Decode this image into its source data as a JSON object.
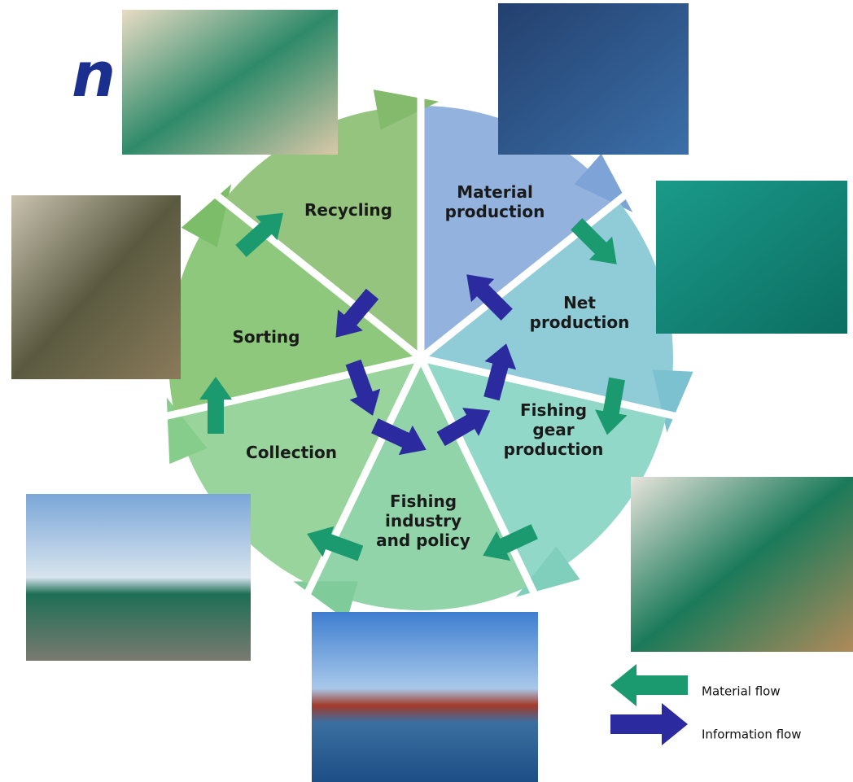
{
  "title_fragment": "n",
  "segments": [
    {
      "lines": [
        "Material",
        "production"
      ]
    },
    {
      "lines": [
        "Net",
        "production"
      ]
    },
    {
      "lines": [
        "Fishing",
        "gear",
        "production"
      ]
    },
    {
      "lines": [
        "Fishing",
        "industry",
        "and policy"
      ]
    },
    {
      "lines": [
        "Collection"
      ]
    },
    {
      "lines": [
        "Sorting"
      ]
    },
    {
      "lines": [
        "Recycling"
      ]
    }
  ],
  "legend": [
    {
      "label": "Material flow"
    },
    {
      "label": "Information flow"
    }
  ]
}
